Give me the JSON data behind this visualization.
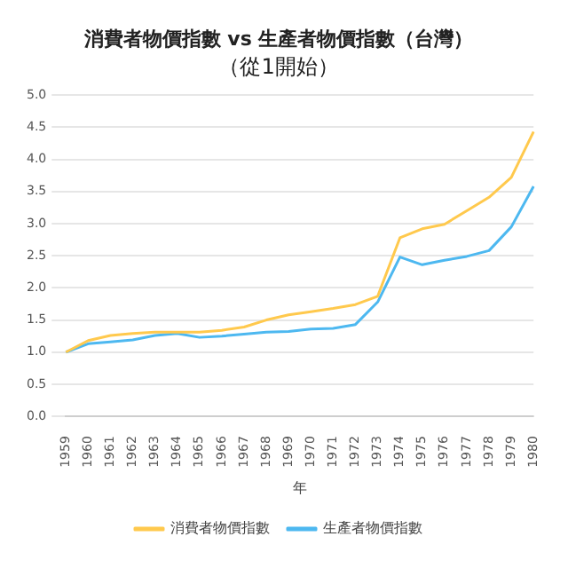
{
  "chart_data": {
    "type": "line",
    "title": "消費者物價指數 vs 生產者物價指數（台灣）",
    "subtitle": "（從1開始）",
    "xlabel": "年",
    "categories": [
      "1959",
      "1960",
      "1961",
      "1962",
      "1963",
      "1964",
      "1965",
      "1966",
      "1967",
      "1968",
      "1969",
      "1970",
      "1971",
      "1972",
      "1973",
      "1974",
      "1975",
      "1976",
      "1977",
      "1978",
      "1979",
      "1980"
    ],
    "series": [
      {
        "name": "消費者物價指數",
        "color": "#ffc94d",
        "values": [
          1.0,
          1.18,
          1.26,
          1.29,
          1.31,
          1.31,
          1.31,
          1.34,
          1.39,
          1.5,
          1.58,
          1.63,
          1.68,
          1.74,
          1.87,
          2.78,
          2.92,
          2.99,
          3.2,
          3.41,
          3.72,
          4.43
        ]
      },
      {
        "name": "生產者物價指數",
        "color": "#4db8f0",
        "values": [
          1.0,
          1.13,
          1.16,
          1.19,
          1.26,
          1.29,
          1.23,
          1.25,
          1.28,
          1.31,
          1.32,
          1.36,
          1.37,
          1.43,
          1.78,
          2.48,
          2.36,
          2.43,
          2.49,
          2.58,
          2.95,
          3.58
        ]
      }
    ],
    "ylim": [
      0,
      5
    ],
    "yticks": [
      {
        "value": 0,
        "label": "0.0"
      },
      0.5,
      {
        "value": 1,
        "label": "1.0"
      },
      1.5,
      {
        "value": 2,
        "label": "2.0"
      },
      2.5,
      {
        "value": 3,
        "label": "3.0"
      },
      3.5,
      {
        "value": 4,
        "label": "4.0"
      },
      4.5,
      {
        "value": 5,
        "label": "5.0"
      }
    ],
    "grid": "y",
    "legend": "bottom",
    "marker": "none",
    "line_style": "solid"
  }
}
